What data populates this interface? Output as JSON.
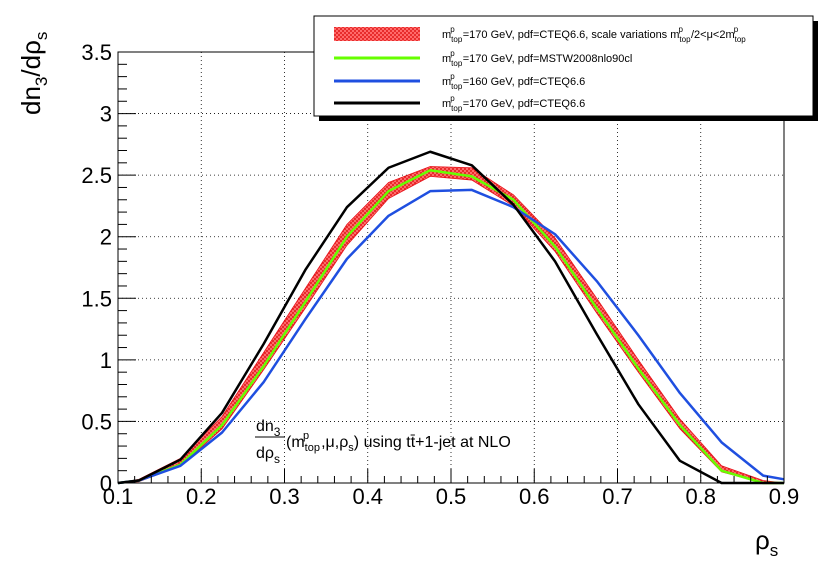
{
  "chart_data": {
    "type": "line",
    "title": "",
    "xlabel": "ρs",
    "ylabel": "dn3/dρs",
    "xlim": [
      0.1,
      0.9
    ],
    "ylim": [
      0,
      3.5
    ],
    "grid": true,
    "legend_position": "top-right",
    "x_ticks": [
      "0.1",
      "0.2",
      "0.3",
      "0.4",
      "0.5",
      "0.6",
      "0.7",
      "0.8",
      "0.9"
    ],
    "y_ticks": [
      "0",
      "0.5",
      "1",
      "1.5",
      "2",
      "2.5",
      "3",
      "3.5"
    ],
    "x_tick_values": [
      0.1,
      0.2,
      0.3,
      0.4,
      0.5,
      0.6,
      0.7,
      0.8,
      0.9
    ],
    "y_tick_values": [
      0,
      0.5,
      1,
      1.5,
      2,
      2.5,
      3,
      3.5
    ],
    "annotation": "dn3/dρs (m_top^p, μ, ρs) using tt̄+1-jet at NLO",
    "band": {
      "name": "m_top^p=170 GeV, pdf=CTEQ6.6, scale variations m_top^p/2<μ<2m_top^p",
      "color": "#e8101a",
      "x": [
        0.1,
        0.125,
        0.175,
        0.225,
        0.275,
        0.325,
        0.375,
        0.425,
        0.475,
        0.525,
        0.575,
        0.625,
        0.675,
        0.725,
        0.775,
        0.825,
        0.875,
        0.9
      ],
      "low": [
        0.0,
        0.01,
        0.14,
        0.44,
        0.92,
        1.42,
        1.93,
        2.31,
        2.49,
        2.46,
        2.25,
        1.88,
        1.38,
        0.9,
        0.44,
        0.09,
        0.0,
        0.0
      ],
      "high": [
        0.0,
        0.03,
        0.2,
        0.54,
        1.06,
        1.58,
        2.1,
        2.44,
        2.57,
        2.56,
        2.34,
        1.99,
        1.5,
        1.0,
        0.52,
        0.14,
        0.02,
        0.0
      ]
    },
    "series": [
      {
        "name": "m_top^p=170 GeV, pdf=MSTW2008nlo90cl",
        "color": "#66ff00",
        "x": [
          0.1,
          0.125,
          0.175,
          0.225,
          0.275,
          0.325,
          0.375,
          0.425,
          0.475,
          0.525,
          0.575,
          0.625,
          0.675,
          0.725,
          0.775,
          0.825,
          0.875,
          0.9
        ],
        "values": [
          0.0,
          0.02,
          0.15,
          0.47,
          0.95,
          1.47,
          2.0,
          2.37,
          2.54,
          2.49,
          2.3,
          1.92,
          1.42,
          0.93,
          0.47,
          0.1,
          0.0,
          0.0
        ]
      },
      {
        "name": "m_top^p=160 GeV, pdf=CTEQ6.6",
        "color": "#1f4fe0",
        "x": [
          0.1,
          0.125,
          0.175,
          0.225,
          0.275,
          0.325,
          0.375,
          0.425,
          0.475,
          0.525,
          0.575,
          0.625,
          0.675,
          0.725,
          0.775,
          0.825,
          0.875,
          0.9
        ],
        "values": [
          0.0,
          0.02,
          0.14,
          0.41,
          0.82,
          1.33,
          1.82,
          2.17,
          2.37,
          2.38,
          2.24,
          2.02,
          1.64,
          1.2,
          0.73,
          0.33,
          0.06,
          0.03
        ]
      },
      {
        "name": "m_top^p=170 GeV, pdf=CTEQ6.6",
        "color": "#000000",
        "x": [
          0.1,
          0.125,
          0.175,
          0.225,
          0.275,
          0.325,
          0.375,
          0.425,
          0.475,
          0.525,
          0.575,
          0.625,
          0.675,
          0.725,
          0.775,
          0.825,
          0.875,
          0.9
        ],
        "values": [
          0.0,
          0.02,
          0.19,
          0.57,
          1.13,
          1.73,
          2.24,
          2.56,
          2.69,
          2.58,
          2.26,
          1.8,
          1.21,
          0.64,
          0.18,
          0.0,
          0.0,
          0.0
        ]
      }
    ]
  }
}
